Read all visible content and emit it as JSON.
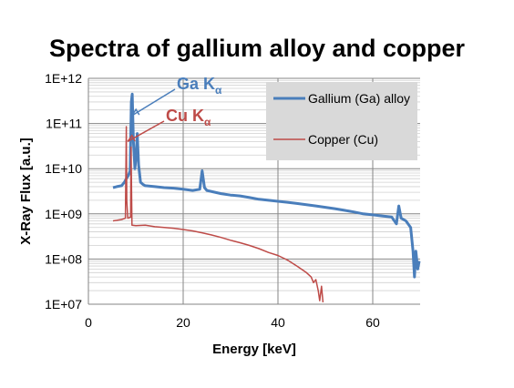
{
  "chart_data": {
    "type": "line",
    "title": "Spectra of gallium alloy and copper",
    "xlabel": "Energy [keV]",
    "ylabel": "X-Ray Flux [a.u.]",
    "xlim": [
      0,
      70
    ],
    "ylim": [
      10000000,
      1000000000000
    ],
    "yscale": "log",
    "x_ticks": [
      "0",
      "20",
      "40",
      "60"
    ],
    "x_tick_values": [
      0,
      20,
      40,
      60
    ],
    "y_ticks": [
      "1E+07",
      "1E+08",
      "1E+09",
      "1E+10",
      "1E+11",
      "1E+12"
    ],
    "y_tick_values": [
      10000000,
      100000000,
      1000000000,
      10000000000,
      100000000000,
      1000000000000
    ],
    "grid": "major and minor horizontal, major vertical",
    "legend_position": "top-right",
    "legend_background": "#d9d9d9",
    "series": [
      {
        "name": "Gallium (Ga) alloy",
        "color": "#4a7ebb",
        "x": [
          5.2,
          6,
          7,
          7.6,
          8,
          8.4,
          8.8,
          9.05,
          9.25,
          9.5,
          9.8,
          10.1,
          10.3,
          10.6,
          11,
          11.5,
          12,
          14,
          16,
          18,
          20,
          22,
          23.5,
          24,
          24.5,
          25,
          28,
          30,
          32,
          34,
          36,
          38,
          40,
          42,
          44,
          46,
          48,
          50,
          52,
          54,
          56,
          58,
          60,
          62,
          64,
          65,
          65.5,
          66,
          67,
          68,
          68.5,
          68.8,
          69.1,
          69.5,
          69.8
        ],
        "y": [
          3800000000,
          4000000000,
          4200000000,
          5000000000,
          6000000000,
          7000000000,
          9000000000,
          300000000000,
          450000000000,
          40000000000,
          10000000000,
          20000000000,
          60000000000,
          12000000000,
          5000000000,
          4500000000,
          4200000000,
          4000000000,
          3800000000,
          3700000000,
          3500000000,
          3300000000,
          3500000000,
          9000000000,
          3800000000,
          3300000000,
          2800000000,
          2600000000,
          2500000000,
          2300000000,
          2100000000,
          2000000000,
          1900000000,
          1800000000,
          1700000000,
          1600000000,
          1500000000,
          1400000000,
          1300000000,
          1200000000,
          1100000000,
          1000000000,
          950000000,
          900000000,
          850000000,
          600000000,
          1500000000,
          800000000,
          700000000,
          500000000,
          150000000,
          40000000,
          150000000,
          60000000,
          90000000
        ]
      },
      {
        "name": "Copper (Cu)",
        "color": "#be4b48",
        "x": [
          5.2,
          6,
          7,
          7.8,
          8.0,
          8.1,
          8.3,
          8.6,
          8.9,
          9.0,
          9.2,
          10,
          12,
          14,
          16,
          18,
          20,
          22,
          24,
          26,
          28,
          30,
          32,
          34,
          36,
          38,
          40,
          42,
          44,
          46,
          47,
          47.5,
          48,
          48.5,
          48.8,
          49.2,
          49.5
        ],
        "y": [
          700000000,
          720000000,
          750000000,
          800000000,
          85000000000,
          2000000000,
          800000000,
          820000000,
          850000000,
          30000000000,
          560000000,
          550000000,
          560000000,
          520000000,
          500000000,
          480000000,
          450000000,
          420000000,
          380000000,
          340000000,
          300000000,
          260000000,
          230000000,
          200000000,
          170000000,
          140000000,
          120000000,
          95000000,
          70000000,
          50000000,
          40000000,
          30000000,
          35000000,
          20000000,
          12000000,
          25000000,
          11000000
        ]
      }
    ],
    "annotations": [
      {
        "base": "Ga K",
        "sub": "α",
        "color": "#4a7ebb",
        "points_to": {
          "x": 9.2,
          "y": 150000000000
        }
      },
      {
        "base": "Cu K",
        "sub": "α",
        "color": "#be4b48",
        "points_to": {
          "x": 8.3,
          "y": 40000000000
        }
      }
    ]
  }
}
